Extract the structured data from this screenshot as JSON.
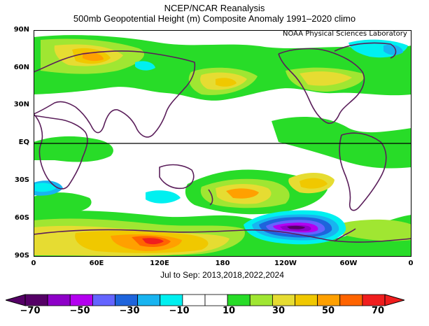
{
  "title": {
    "line1": "NCEP/NCAR Reanalysis",
    "line2": "500mb Geopotential Height (m) Composite Anomaly 1991–2020 climo"
  },
  "credit": "NOAA Physical Sciences Laboratory",
  "period": "Jul to Sep: 2013,2018,2022,2024",
  "axes": {
    "y_ticks": [
      "90N",
      "60N",
      "30N",
      "EQ",
      "30S",
      "60S",
      "90S"
    ],
    "x_ticks": [
      "0",
      "60E",
      "120E",
      "180",
      "120W",
      "60W",
      "0"
    ]
  },
  "colorbar": {
    "labels": [
      "−70",
      "−50",
      "−30",
      "−10",
      "10",
      "30",
      "50",
      "70"
    ],
    "colors": [
      "#550066",
      "#8e00c8",
      "#b400f0",
      "#6464ff",
      "#1e64dc",
      "#18b4f0",
      "#00f0f0",
      "#ffffff",
      "#ffffff",
      "#28dc28",
      "#a0e632",
      "#e6dc32",
      "#f0c800",
      "#ffa000",
      "#ff6400",
      "#f01e1e"
    ]
  },
  "icons": {
    "colorbar_ends": "triangle-arrow"
  }
}
